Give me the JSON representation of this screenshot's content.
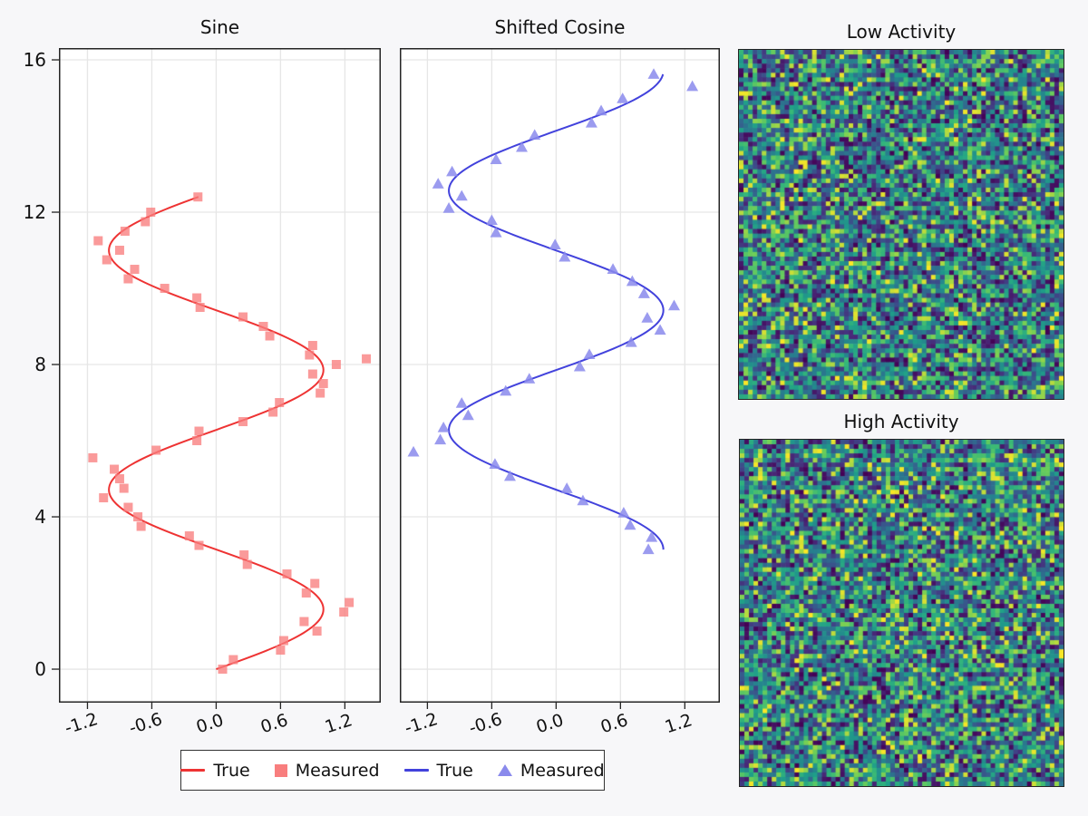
{
  "figure": {
    "background": "#f7f7f9",
    "plot_background": "#ffffff",
    "grid_color": "#e6e6e6",
    "spine_color": "#242424",
    "text_color": "#111111"
  },
  "chart_data": [
    {
      "id": "sine",
      "type": "line+scatter",
      "title": "Sine",
      "orientation": "parametric: x = f(t), y = t",
      "xlim": [
        -1.466,
        1.535
      ],
      "ylim": [
        -0.88,
        16.31
      ],
      "xticks": [
        -1.2,
        -0.6,
        0.0,
        0.6,
        1.2
      ],
      "xtick_labels": [
        "-1.2",
        "-0.6",
        "0.0",
        "0.6",
        "1.2"
      ],
      "yticks": [
        0,
        4,
        8,
        12,
        16
      ],
      "ytick_labels": [
        "0",
        "4",
        "8",
        "12",
        "16"
      ],
      "show_ytick_labels": true,
      "grid": true,
      "true_curve": {
        "label": "True",
        "color": "#ee3333",
        "line_width": 2,
        "fn": "sin",
        "formula": "x = sin(t)",
        "t_min": 0,
        "t_max": 12.4
      },
      "measured": {
        "label": "Measured",
        "color": "#f87e7e",
        "opacity": 0.78,
        "marker": "square",
        "marker_size": 10,
        "points": [
          [
            0.06,
            0.0
          ],
          [
            0.16,
            0.25
          ],
          [
            0.6,
            0.5
          ],
          [
            0.63,
            0.75
          ],
          [
            0.94,
            1.0
          ],
          [
            0.82,
            1.25
          ],
          [
            1.19,
            1.5
          ],
          [
            1.24,
            1.75
          ],
          [
            0.84,
            2.0
          ],
          [
            0.92,
            2.25
          ],
          [
            0.66,
            2.5
          ],
          [
            0.29,
            2.75
          ],
          [
            0.26,
            3.0
          ],
          [
            -0.16,
            3.25
          ],
          [
            -0.25,
            3.5
          ],
          [
            -0.7,
            3.75
          ],
          [
            -0.73,
            4.0
          ],
          [
            -0.82,
            4.25
          ],
          [
            -1.05,
            4.5
          ],
          [
            -0.86,
            4.75
          ],
          [
            -0.9,
            5.0
          ],
          [
            -0.95,
            5.25
          ],
          [
            -1.15,
            5.55
          ],
          [
            -0.56,
            5.75
          ],
          [
            -0.18,
            6.0
          ],
          [
            -0.16,
            6.25
          ],
          [
            0.25,
            6.5
          ],
          [
            0.53,
            6.75
          ],
          [
            0.59,
            7.0
          ],
          [
            0.97,
            7.25
          ],
          [
            1.0,
            7.5
          ],
          [
            0.9,
            7.75
          ],
          [
            1.12,
            8.0
          ],
          [
            1.4,
            8.15
          ],
          [
            0.87,
            8.25
          ],
          [
            0.9,
            8.5
          ],
          [
            0.5,
            8.75
          ],
          [
            0.44,
            9.0
          ],
          [
            0.25,
            9.25
          ],
          [
            -0.15,
            9.5
          ],
          [
            -0.18,
            9.75
          ],
          [
            -0.48,
            10.0
          ],
          [
            -0.82,
            10.25
          ],
          [
            -0.76,
            10.5
          ],
          [
            -1.02,
            10.75
          ],
          [
            -0.9,
            11.0
          ],
          [
            -1.1,
            11.25
          ],
          [
            -0.85,
            11.5
          ],
          [
            -0.66,
            11.75
          ],
          [
            -0.61,
            12.0
          ],
          [
            -0.17,
            12.4
          ]
        ]
      }
    },
    {
      "id": "shifted_cosine",
      "type": "line+scatter",
      "title": "Shifted Cosine",
      "orientation": "parametric: x = f(t), y = t",
      "xlim": [
        -1.457,
        1.527
      ],
      "ylim": [
        -0.88,
        16.31
      ],
      "xticks": [
        -1.2,
        -0.6,
        0.0,
        0.6,
        1.2
      ],
      "xtick_labels": [
        "-1.2",
        "-0.6",
        "0.0",
        "0.6",
        "1.2"
      ],
      "yticks": [
        0,
        4,
        8,
        12,
        16
      ],
      "ytick_labels": [],
      "show_ytick_labels": false,
      "grid": true,
      "true_curve": {
        "label": "True",
        "color": "#4242dc",
        "line_width": 2,
        "fn": "shifted_cos",
        "formula": "x = cos(t - pi)",
        "t_min": 3.14,
        "t_max": 15.62
      },
      "measured": {
        "label": "Measured",
        "color": "#8a8aec",
        "opacity": 0.85,
        "marker": "triangle",
        "marker_size": 13,
        "points": [
          [
            0.86,
            3.14
          ],
          [
            0.89,
            3.46
          ],
          [
            0.69,
            3.78
          ],
          [
            0.63,
            4.1
          ],
          [
            0.25,
            4.42
          ],
          [
            0.1,
            4.74
          ],
          [
            -0.43,
            5.06
          ],
          [
            -0.57,
            5.38
          ],
          [
            -1.33,
            5.7
          ],
          [
            -1.08,
            6.02
          ],
          [
            -1.05,
            6.34
          ],
          [
            -0.82,
            6.66
          ],
          [
            -0.88,
            6.98
          ],
          [
            -0.47,
            7.3
          ],
          [
            -0.25,
            7.62
          ],
          [
            0.22,
            7.94
          ],
          [
            0.31,
            8.26
          ],
          [
            0.7,
            8.58
          ],
          [
            0.97,
            8.9
          ],
          [
            0.85,
            9.22
          ],
          [
            1.1,
            9.54
          ],
          [
            0.82,
            9.86
          ],
          [
            0.71,
            10.18
          ],
          [
            0.53,
            10.5
          ],
          [
            0.08,
            10.82
          ],
          [
            -0.01,
            11.14
          ],
          [
            -0.56,
            11.46
          ],
          [
            -0.6,
            11.78
          ],
          [
            -1.0,
            12.1
          ],
          [
            -0.88,
            12.42
          ],
          [
            -1.1,
            12.74
          ],
          [
            -0.97,
            13.06
          ],
          [
            -0.56,
            13.38
          ],
          [
            -0.32,
            13.7
          ],
          [
            -0.2,
            14.02
          ],
          [
            0.33,
            14.34
          ],
          [
            0.42,
            14.66
          ],
          [
            0.62,
            14.98
          ],
          [
            1.27,
            15.3
          ],
          [
            0.91,
            15.62
          ]
        ]
      }
    },
    {
      "id": "low_activity",
      "type": "heatmap",
      "title": "Low Activity",
      "colormap": "viridis",
      "rows": 76,
      "cols": 71,
      "value_range": [
        0,
        1
      ],
      "values_spec": "unlabeled uniform random noise texture (no colorbar shown)",
      "seed": 20
    },
    {
      "id": "high_activity",
      "type": "heatmap",
      "title": "High Activity",
      "colormap": "viridis",
      "rows": 76,
      "cols": 71,
      "value_range": [
        0,
        1
      ],
      "values_spec": "unlabeled uniform random noise texture (no colorbar shown)",
      "seed": 77
    }
  ],
  "legend": {
    "items": [
      {
        "label": "True",
        "swatch": "line",
        "color": "#ee3333"
      },
      {
        "label": "Measured",
        "swatch": "square",
        "color": "#f87e7e"
      },
      {
        "label": "True",
        "swatch": "line",
        "color": "#4242dc"
      },
      {
        "label": "Measured",
        "swatch": "triangle",
        "color": "#8a8aec"
      }
    ]
  },
  "viridis_stops": [
    [
      0.0,
      "#440154"
    ],
    [
      0.125,
      "#482878"
    ],
    [
      0.25,
      "#3e4989"
    ],
    [
      0.375,
      "#31688e"
    ],
    [
      0.5,
      "#26828e"
    ],
    [
      0.625,
      "#1f9e89"
    ],
    [
      0.75,
      "#35b779"
    ],
    [
      0.875,
      "#6ece58"
    ],
    [
      1.0,
      "#fde725"
    ]
  ]
}
